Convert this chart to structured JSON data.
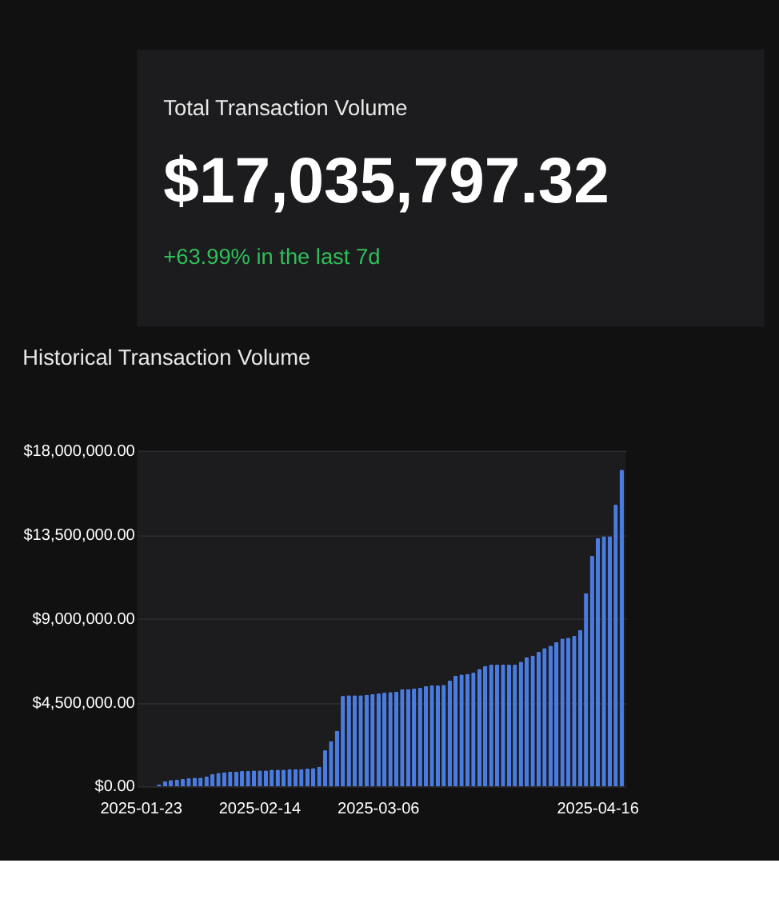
{
  "chart_data": [
    {
      "type": "other",
      "title": "Total Transaction Volume",
      "subtitle": "$17,035,797.32",
      "annotations": [
        "+63.99% in the last 7d"
      ]
    },
    {
      "type": "bar",
      "title": "Historical Transaction Volume",
      "categories": [
        "2025-01-23",
        null,
        null,
        null,
        null,
        null,
        null,
        null,
        null,
        null,
        null,
        null,
        null,
        null,
        null,
        null,
        null,
        null,
        null,
        null,
        "2025-02-14",
        null,
        null,
        null,
        null,
        null,
        null,
        null,
        null,
        null,
        null,
        null,
        null,
        null,
        null,
        null,
        null,
        null,
        null,
        null,
        "2025-03-06",
        null,
        null,
        null,
        null,
        null,
        null,
        null,
        null,
        null,
        null,
        null,
        null,
        null,
        null,
        null,
        null,
        null,
        null,
        null,
        null,
        null,
        null,
        null,
        null,
        null,
        null,
        null,
        null,
        null,
        null,
        null,
        null,
        null,
        null,
        null,
        null,
        "2025-04-16",
        null,
        null,
        null,
        null
      ],
      "series": [
        {
          "color": "#4a7be0",
          "values": [
            0,
            0,
            0,
            100000,
            260000,
            330000,
            360000,
            390000,
            430000,
            460000,
            460000,
            520000,
            660000,
            720000,
            750000,
            790000,
            790000,
            820000,
            820000,
            850000,
            850000,
            850000,
            890000,
            890000,
            890000,
            920000,
            920000,
            920000,
            950000,
            980000,
            1050000,
            1930000,
            2430000,
            2980000,
            4850000,
            4880000,
            4880000,
            4880000,
            4920000,
            4950000,
            4980000,
            5020000,
            5050000,
            5080000,
            5210000,
            5210000,
            5250000,
            5280000,
            5380000,
            5410000,
            5410000,
            5440000,
            5670000,
            5930000,
            6000000,
            6030000,
            6100000,
            6300000,
            6460000,
            6520000,
            6520000,
            6520000,
            6520000,
            6520000,
            6690000,
            6920000,
            7020000,
            7210000,
            7410000,
            7540000,
            7740000,
            7930000,
            7970000,
            8070000,
            8390000,
            10360000,
            12360000,
            13310000,
            13410000,
            13410000,
            15110000,
            16980000
          ]
        }
      ],
      "ylim": [
        0,
        18000000
      ],
      "yticks": [
        {
          "value": 0,
          "label": "$0.00"
        },
        {
          "value": 4500000,
          "label": "$4,500,000.00"
        },
        {
          "value": 9000000,
          "label": "$9,000,000.00"
        },
        {
          "value": 13500000,
          "label": "$13,500,000.00"
        },
        {
          "value": 18000000,
          "label": "$18,000,000.00"
        }
      ],
      "grid": "y",
      "legend": false
    }
  ]
}
